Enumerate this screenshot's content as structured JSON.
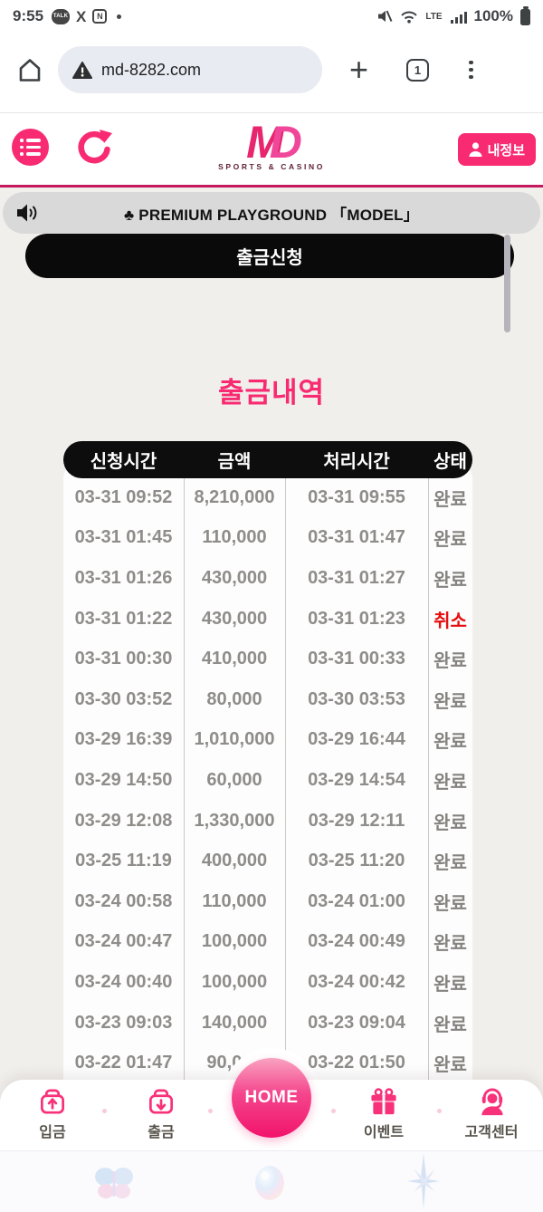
{
  "status_bar": {
    "time": "9:55",
    "kakao_label": "TALK",
    "x_label": "X",
    "naver_label": "N",
    "network_label": "LTE",
    "battery_percent": "100%"
  },
  "browser_bar": {
    "url": "md-8282.com",
    "tab_count": "1"
  },
  "site_header": {
    "logo_m": "M",
    "logo_d": "D",
    "logo_subtitle": "SPORTS & CASINO",
    "my_info_label": "내정보"
  },
  "notice_bar": {
    "text": "♣ PREMIUM PLAYGROUND 「MODEL」"
  },
  "actions": {
    "withdraw_request_label": "출금신청"
  },
  "section": {
    "title": "출금내역"
  },
  "table": {
    "headers": [
      "신청시간",
      "금액",
      "처리시간",
      "상태"
    ],
    "rows": [
      [
        "03-31 09:52",
        "8,210,000",
        "03-31 09:55",
        "완료"
      ],
      [
        "03-31 01:45",
        "110,000",
        "03-31 01:47",
        "완료"
      ],
      [
        "03-31 01:26",
        "430,000",
        "03-31 01:27",
        "완료"
      ],
      [
        "03-31 01:22",
        "430,000",
        "03-31 01:23",
        "취소"
      ],
      [
        "03-31 00:30",
        "410,000",
        "03-31 00:33",
        "완료"
      ],
      [
        "03-30 03:52",
        "80,000",
        "03-30 03:53",
        "완료"
      ],
      [
        "03-29 16:39",
        "1,010,000",
        "03-29 16:44",
        "완료"
      ],
      [
        "03-29 14:50",
        "60,000",
        "03-29 14:54",
        "완료"
      ],
      [
        "03-29 12:08",
        "1,330,000",
        "03-29 12:11",
        "완료"
      ],
      [
        "03-25 11:19",
        "400,000",
        "03-25 11:20",
        "완료"
      ],
      [
        "03-24 00:58",
        "110,000",
        "03-24 01:00",
        "완료"
      ],
      [
        "03-24 00:47",
        "100,000",
        "03-24 00:49",
        "완료"
      ],
      [
        "03-24 00:40",
        "100,000",
        "03-24 00:42",
        "완료"
      ],
      [
        "03-23 09:03",
        "140,000",
        "03-23 09:04",
        "완료"
      ],
      [
        "03-22 01:47",
        "90,000",
        "03-22 01:50",
        "완료"
      ]
    ],
    "cancel_value": "취소"
  },
  "bottom_nav": {
    "deposit": "입금",
    "withdraw": "출금",
    "home": "HOME",
    "event": "이벤트",
    "support": "고객센터"
  },
  "colors": {
    "accent_pink": "#f82b72",
    "header_border": "#c4195d",
    "cancel_red": "#e60f0f",
    "table_header_black": "#0d0d0d",
    "page_bg": "#f1efeb",
    "row_text_gray": "#8f8d8a",
    "notice_gray": "#d9d9d9"
  }
}
